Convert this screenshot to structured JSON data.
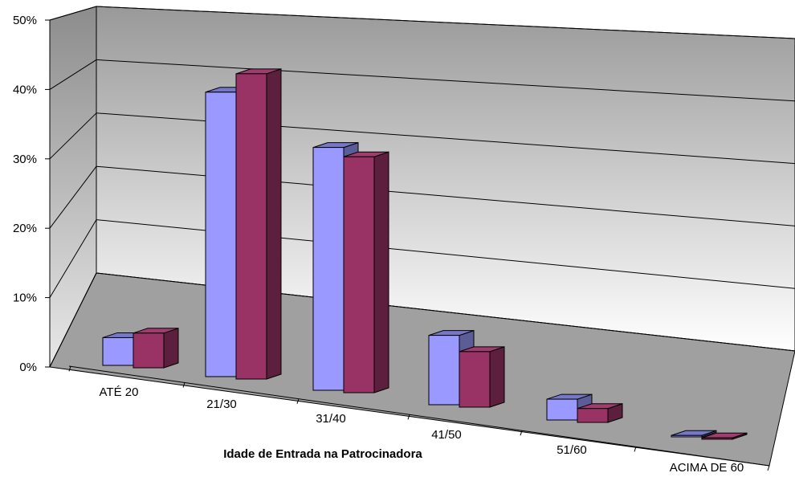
{
  "chart_data": {
    "type": "bar",
    "title": "",
    "xlabel": "Idade de Entrada na Patrocinadora",
    "ylabel": "",
    "categories": [
      "ATÉ 20",
      "21/30",
      "31/40",
      "41/50",
      "51/60",
      "ACIMA DE 60"
    ],
    "series": [
      {
        "values": [
          4,
          41,
          35,
          10,
          3,
          0.2
        ],
        "color": "#9999ff"
      },
      {
        "values": [
          5,
          44,
          34,
          8,
          2,
          0.2
        ],
        "color": "#993366"
      }
    ],
    "ylim": [
      0,
      50
    ],
    "yticks": [
      "0%",
      "10%",
      "20%",
      "30%",
      "40%",
      "50%"
    ],
    "grid": true,
    "legend": "none",
    "style": "3d-clustered-column"
  }
}
